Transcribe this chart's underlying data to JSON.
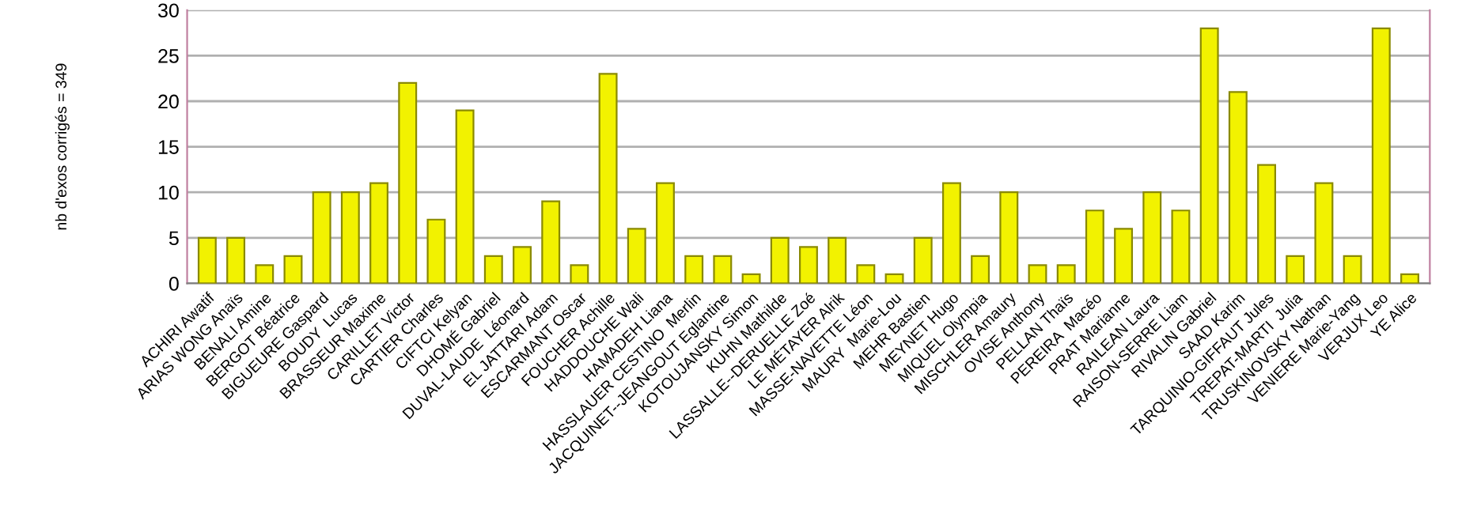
{
  "chart_data": {
    "type": "bar",
    "ylabel": "nb d'exos corrigés = 349",
    "categories": [
      "ACHIRI Awatif",
      "ARIAS WONG Anaïs",
      "BENALI Amine",
      "BERGOT Béatrice",
      "BIGUEURE Gaspard",
      "BOUDY  Lucas",
      "BRASSEUR Maxime",
      "CARILLET Victor",
      "CARTIER Charles",
      "CIFTCI Kelyan",
      "DHOMÉ Gabriel",
      "DUVAL-LAUDE  Léonard",
      "EL JATTARI Adam",
      "ESCARMANT Oscar",
      "FOUCHER Achille",
      "HADDOUCHE Wali",
      "HAMADEH Liana",
      "HASSLAUER CESTINO  Merlin",
      "JACQUINET--JEANGOUT Eglantine",
      "KOTOUJANSKY Simon",
      "KUHN Mathilde",
      "LASSALLE--DERUELLE Zoé",
      "LE MÉTAYER Alrik",
      "MASSE-NAVETTE Léon",
      "MAURY  Marie-Lou",
      "MEHR Bastien",
      "MEYNET Hugo",
      "MIQUEL Olympia",
      "MISCHLER Amaury",
      "OVISE Anthony",
      "PELLAN Thaïs",
      "PEREIRA  Macéo",
      "PRAT Marianne",
      "RAILEAN Laura",
      "RAISON-SERRE Liam",
      "RIVALIN Gabriel",
      "SAAD Karim",
      "TARQUINIO-GIFFAUT Jules",
      "TREPAT-MARTI  Julia",
      "TRUSKINOVSKY Nathan",
      "VENIERE Marie-Yang",
      "VERJUX Leo",
      "YE Alice"
    ],
    "values": [
      5,
      5,
      2,
      3,
      10,
      10,
      11,
      22,
      7,
      19,
      3,
      4,
      9,
      2,
      23,
      6,
      11,
      3,
      3,
      1,
      5,
      4,
      5,
      2,
      1,
      5,
      11,
      3,
      10,
      2,
      2,
      8,
      6,
      10,
      8,
      28,
      21,
      13,
      3,
      11,
      3,
      28,
      1
    ],
    "color": "#f2f200",
    "ylim": [
      0,
      30
    ],
    "yticks": [
      0,
      5,
      10,
      15,
      20,
      25,
      30
    ],
    "grid": "y"
  }
}
